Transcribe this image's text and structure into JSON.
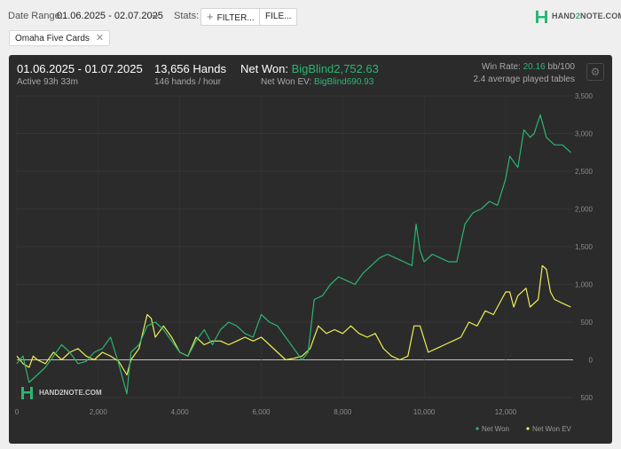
{
  "toolbar": {
    "date_range_label": "Date Range:",
    "date_range_value": "01.06.2025 - 02.07.2025",
    "stats_label": "Stats:",
    "filter_button": "FILTER...",
    "file_button": "FILE...",
    "logo_text_left": "HAND",
    "logo_text_mid": "2",
    "logo_text_right": "NOTE.COM",
    "chip_label": "Omaha Five Cards",
    "chip_close": "✕"
  },
  "summary": {
    "period": "01.06.2025 - 01.07.2025",
    "active": "Active 93h 33m",
    "hands": "13,656 Hands",
    "hands_per_hour": "146 hands / hour",
    "net_won_label": "Net Won:",
    "net_won_value": "BigBlind2,752.63",
    "net_won_ev_label": "Net Won  EV:",
    "net_won_ev_value": "BigBlind690.93",
    "win_rate_label": "Win Rate:",
    "win_rate_value": "20.16",
    "win_rate_unit": "bb/100",
    "avg_tables": "2.4 average played tables"
  },
  "icons": {
    "settings": "gear-icon",
    "logo": "hand2note-logo-icon",
    "close": "close-icon",
    "add": "plus-icon"
  },
  "colors": {
    "net_won": "#2bb673",
    "net_won_ev": "#eeee55",
    "panel": "#2b2b2b",
    "zero_line": "#bfbfbf"
  },
  "watermark": "HAND2NOTE.COM",
  "chart_data": {
    "type": "line",
    "xlim": [
      0,
      13656
    ],
    "ylim": [
      -500,
      3500
    ],
    "x_ticks": [
      0,
      2000,
      4000,
      6000,
      8000,
      10000,
      12000
    ],
    "x_tick_labels": [
      "0",
      "2,000",
      "4,000",
      "6,000",
      "8,000",
      "10,000",
      "12,000"
    ],
    "y_ticks": [
      -500,
      0,
      500,
      1000,
      1500,
      2000,
      2500,
      3000,
      3500
    ],
    "y_tick_labels": [
      "500",
      "0",
      "500",
      "1,000",
      "1,500",
      "2,000",
      "2,500",
      "3,000",
      "3,500"
    ],
    "grid": true,
    "legend_position": "bottom-right",
    "series": [
      {
        "name": "Net Won",
        "color": "#2bb673",
        "points": [
          [
            0,
            -50
          ],
          [
            150,
            50
          ],
          [
            300,
            -300
          ],
          [
            500,
            -200
          ],
          [
            700,
            -100
          ],
          [
            900,
            50
          ],
          [
            1100,
            200
          ],
          [
            1300,
            100
          ],
          [
            1500,
            -50
          ],
          [
            1700,
            -20
          ],
          [
            1900,
            100
          ],
          [
            2100,
            150
          ],
          [
            2300,
            300
          ],
          [
            2500,
            -50
          ],
          [
            2700,
            -450
          ],
          [
            2800,
            100
          ],
          [
            3000,
            200
          ],
          [
            3200,
            450
          ],
          [
            3400,
            500
          ],
          [
            3600,
            400
          ],
          [
            3800,
            250
          ],
          [
            4000,
            100
          ],
          [
            4200,
            50
          ],
          [
            4400,
            250
          ],
          [
            4600,
            400
          ],
          [
            4800,
            200
          ],
          [
            5000,
            400
          ],
          [
            5200,
            500
          ],
          [
            5400,
            450
          ],
          [
            5600,
            350
          ],
          [
            5800,
            300
          ],
          [
            6000,
            600
          ],
          [
            6200,
            500
          ],
          [
            6400,
            450
          ],
          [
            6600,
            300
          ],
          [
            6800,
            150
          ],
          [
            7000,
            0
          ],
          [
            7150,
            100
          ],
          [
            7300,
            800
          ],
          [
            7500,
            850
          ],
          [
            7700,
            1000
          ],
          [
            7900,
            1100
          ],
          [
            8100,
            1050
          ],
          [
            8300,
            1000
          ],
          [
            8500,
            1150
          ],
          [
            8700,
            1250
          ],
          [
            8900,
            1350
          ],
          [
            9100,
            1400
          ],
          [
            9300,
            1350
          ],
          [
            9500,
            1300
          ],
          [
            9700,
            1250
          ],
          [
            9800,
            1800
          ],
          [
            9900,
            1450
          ],
          [
            10000,
            1300
          ],
          [
            10200,
            1400
          ],
          [
            10400,
            1350
          ],
          [
            10600,
            1300
          ],
          [
            10800,
            1300
          ],
          [
            11000,
            1800
          ],
          [
            11200,
            1950
          ],
          [
            11400,
            2000
          ],
          [
            11600,
            2100
          ],
          [
            11800,
            2050
          ],
          [
            12000,
            2400
          ],
          [
            12100,
            2700
          ],
          [
            12300,
            2550
          ],
          [
            12450,
            3050
          ],
          [
            12600,
            2950
          ],
          [
            12700,
            3000
          ],
          [
            12850,
            3250
          ],
          [
            13000,
            2950
          ],
          [
            13200,
            2850
          ],
          [
            13400,
            2850
          ],
          [
            13600,
            2750
          ]
        ]
      },
      {
        "name": "Net Won  EV",
        "color": "#eeee55",
        "points": [
          [
            0,
            50
          ],
          [
            150,
            -50
          ],
          [
            300,
            -100
          ],
          [
            400,
            50
          ],
          [
            500,
            0
          ],
          [
            700,
            -50
          ],
          [
            900,
            100
          ],
          [
            1100,
            0
          ],
          [
            1300,
            100
          ],
          [
            1500,
            150
          ],
          [
            1700,
            50
          ],
          [
            1900,
            0
          ],
          [
            2100,
            100
          ],
          [
            2300,
            50
          ],
          [
            2500,
            -20
          ],
          [
            2700,
            -200
          ],
          [
            2800,
            0
          ],
          [
            3000,
            150
          ],
          [
            3200,
            600
          ],
          [
            3300,
            550
          ],
          [
            3400,
            300
          ],
          [
            3600,
            450
          ],
          [
            3800,
            300
          ],
          [
            4000,
            100
          ],
          [
            4200,
            50
          ],
          [
            4400,
            300
          ],
          [
            4600,
            200
          ],
          [
            4800,
            250
          ],
          [
            5000,
            250
          ],
          [
            5200,
            200
          ],
          [
            5400,
            250
          ],
          [
            5600,
            300
          ],
          [
            5800,
            250
          ],
          [
            6000,
            300
          ],
          [
            6200,
            200
          ],
          [
            6400,
            100
          ],
          [
            6600,
            0
          ],
          [
            6800,
            20
          ],
          [
            7000,
            50
          ],
          [
            7200,
            150
          ],
          [
            7400,
            450
          ],
          [
            7600,
            350
          ],
          [
            7800,
            400
          ],
          [
            8000,
            350
          ],
          [
            8200,
            450
          ],
          [
            8400,
            350
          ],
          [
            8600,
            300
          ],
          [
            8800,
            350
          ],
          [
            9000,
            150
          ],
          [
            9200,
            50
          ],
          [
            9400,
            0
          ],
          [
            9600,
            50
          ],
          [
            9750,
            450
          ],
          [
            9900,
            450
          ],
          [
            10100,
            100
          ],
          [
            10300,
            150
          ],
          [
            10500,
            200
          ],
          [
            10700,
            250
          ],
          [
            10900,
            300
          ],
          [
            11100,
            500
          ],
          [
            11300,
            450
          ],
          [
            11500,
            650
          ],
          [
            11700,
            600
          ],
          [
            11900,
            800
          ],
          [
            12000,
            900
          ],
          [
            12100,
            900
          ],
          [
            12200,
            700
          ],
          [
            12300,
            850
          ],
          [
            12500,
            950
          ],
          [
            12600,
            700
          ],
          [
            12800,
            800
          ],
          [
            12900,
            1250
          ],
          [
            13000,
            1200
          ],
          [
            13100,
            900
          ],
          [
            13200,
            800
          ],
          [
            13400,
            750
          ],
          [
            13600,
            700
          ]
        ]
      }
    ]
  }
}
